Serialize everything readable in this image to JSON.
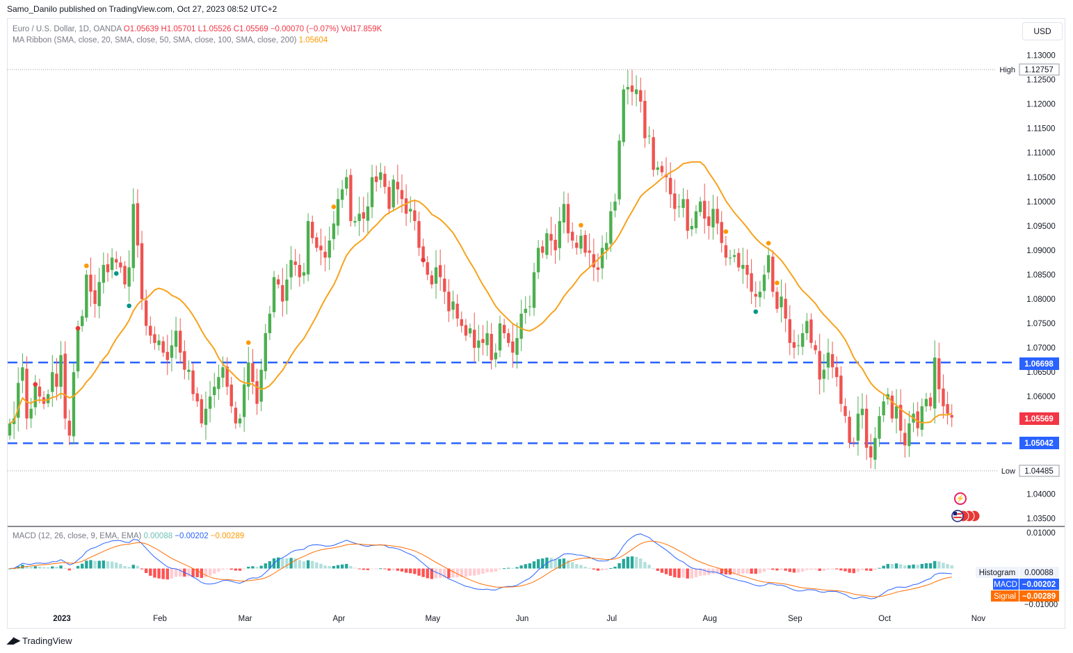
{
  "header": {
    "publisher": "Samo_Danilo published on TradingView.com, Oct 27, 2023 08:52 UTC+2",
    "symbol": "Euro / U.S. Dollar, 1D, OANDA",
    "open": "O1.05639",
    "high": "H1.05701",
    "low": "L1.05526",
    "close": "C1.05569",
    "change": "−0.00070 (−0.07%)",
    "volume": "Vol17.859K",
    "ma_label": "MA Ribbon (SMA, close, 20, SMA, close, 50, SMA, close, 100, SMA, close, 200)",
    "ma_value": "1.05604",
    "macd_label": "MACD (12, 26, close, 9, EMA, EMA)",
    "macd_hist": "0.00088",
    "macd_line": "−0.00202",
    "macd_signal": "−0.00289"
  },
  "currency_button": "USD",
  "branding": "TradingView",
  "price_tags": {
    "high_label": "High",
    "high_value": "1.12757",
    "low_label": "Low",
    "low_value": "1.04485",
    "resistance": "1.06698",
    "support": "1.05042",
    "last": "1.05569",
    "histogram_label": "Histogram",
    "histogram_value": "0.00088",
    "macd_label": "MACD",
    "macd_value": "−0.00202",
    "signal_label": "Signal",
    "signal_value": "−0.00289"
  },
  "colors": {
    "up": "#4caf50",
    "down": "#ef5350",
    "ma": "#f7a21b",
    "level": "#2962ff",
    "macd": "#2962ff",
    "signal": "#ff6d00",
    "hist_up_strong": "#26a69a",
    "hist_up_weak": "#b2dfdb",
    "hist_down_strong": "#ff5252",
    "hist_down_weak": "#ffcdd2"
  },
  "chart_data": {
    "type": "candlestick",
    "price_ticks": [
      "1.13000",
      "1.12500",
      "1.12000",
      "1.11500",
      "1.11000",
      "1.10500",
      "1.10000",
      "1.09500",
      "1.09000",
      "1.08500",
      "1.08000",
      "1.07500",
      "1.07000",
      "1.06500",
      "1.06000",
      "1.05500",
      "1.05000",
      "1.04500",
      "1.04000",
      "1.03500"
    ],
    "price_range": [
      1.0335,
      1.1315
    ],
    "macd_ticks": [
      "0.01000",
      "−0.01000"
    ],
    "macd_range": [
      -0.0118,
      0.0118
    ],
    "x_labels": [
      "2023",
      "Feb",
      "Mar",
      "Apr",
      "May",
      "Jun",
      "Jul",
      "Aug",
      "Sep",
      "Oct",
      "Nov"
    ],
    "x_label_positions": [
      0,
      23,
      43,
      65,
      87,
      108,
      129,
      152,
      172,
      193,
      215
    ],
    "levels": [
      1.06698,
      1.05042
    ],
    "high": 1.12757,
    "low": 1.04485,
    "last": 1.05569,
    "closes": [
      1.0545,
      1.0555,
      1.0628,
      1.066,
      1.0555,
      1.0575,
      1.0625,
      1.06,
      1.0585,
      1.0605,
      1.065,
      1.062,
      1.0685,
      1.0555,
      1.052,
      1.065,
      1.074,
      1.0765,
      1.085,
      1.0815,
      1.079,
      1.0835,
      1.087,
      1.0855,
      1.0885,
      1.0875,
      1.0865,
      1.083,
      1.0865,
      1.0995,
      1.091,
      1.08,
      1.0745,
      1.0725,
      1.071,
      1.0715,
      1.069,
      1.0675,
      1.0705,
      1.0735,
      1.069,
      1.0655,
      1.0655,
      1.0605,
      1.059,
      1.0545,
      1.0575,
      1.06,
      1.062,
      1.064,
      1.066,
      1.062,
      1.058,
      1.0545,
      1.0555,
      1.0625,
      1.067,
      1.063,
      1.0585,
      1.0655,
      1.073,
      1.077,
      1.0845,
      1.083,
      1.0795,
      1.084,
      1.088,
      1.087,
      1.0845,
      1.0855,
      1.096,
      1.0925,
      1.0905,
      1.09,
      1.0885,
      1.092,
      1.0955,
      1.1005,
      1.1025,
      1.105,
      1.096,
      1.096,
      1.0975,
      1.0965,
      1.099,
      1.105,
      1.104,
      1.106,
      1.103,
      1.0985,
      1.1045,
      1.1025,
      1.1005,
      1.0975,
      1.0985,
      1.096,
      1.0905,
      1.088,
      1.085,
      1.083,
      1.0865,
      1.0845,
      1.0815,
      1.0775,
      1.0795,
      1.076,
      1.0745,
      1.0725,
      1.074,
      1.07,
      1.0715,
      1.071,
      1.073,
      1.0675,
      1.069,
      1.075,
      1.073,
      1.071,
      1.069,
      1.072,
      1.077,
      1.078,
      1.0785,
      1.0855,
      1.0905,
      1.0895,
      1.0935,
      1.092,
      1.09,
      1.096,
      1.0995,
      1.0935,
      1.092,
      1.0905,
      1.093,
      1.0895,
      1.0895,
      1.0865,
      1.086,
      1.0905,
      1.0915,
      1.098,
      1.1,
      1.1125,
      1.123,
      1.1235,
      1.1225,
      1.123,
      1.1205,
      1.113,
      1.1135,
      1.1065,
      1.107,
      1.106,
      1.105,
      1.1015,
      1.0985,
      1.099,
      1.1005,
      1.094,
      1.095,
      1.098,
      1.1,
      1.0965,
      1.095,
      1.0985,
      1.0955,
      1.0915,
      1.0885,
      1.0885,
      1.089,
      1.0865,
      1.087,
      1.085,
      1.0815,
      1.0805,
      1.0815,
      1.085,
      1.089,
      1.0815,
      1.078,
      1.0805,
      1.076,
      1.071,
      1.07,
      1.0705,
      1.073,
      1.0755,
      1.071,
      1.0695,
      1.0635,
      1.0655,
      1.069,
      1.066,
      1.064,
      1.0585,
      1.056,
      1.0505,
      1.0505,
      1.0565,
      1.0575,
      1.0495,
      1.0475,
      1.0515,
      1.056,
      1.059,
      1.0605,
      1.0555,
      1.058,
      1.053,
      1.05,
      1.0545,
      1.0565,
      1.0535,
      1.058,
      1.0595,
      1.058,
      1.068,
      1.0615,
      1.058,
      1.0565,
      1.0557
    ],
    "markers": [
      {
        "i": 6,
        "type": "red"
      },
      {
        "i": 16,
        "type": "red"
      },
      {
        "i": 18,
        "type": "orange"
      },
      {
        "i": 25,
        "type": "teal"
      },
      {
        "i": 28,
        "type": "teal"
      },
      {
        "i": 56,
        "type": "orange"
      },
      {
        "i": 76,
        "type": "orange"
      },
      {
        "i": 97,
        "type": "red"
      },
      {
        "i": 134,
        "type": "orange"
      },
      {
        "i": 168,
        "type": "orange"
      },
      {
        "i": 175,
        "type": "teal"
      },
      {
        "i": 178,
        "type": "orange"
      },
      {
        "i": 180,
        "type": "orange"
      }
    ]
  }
}
